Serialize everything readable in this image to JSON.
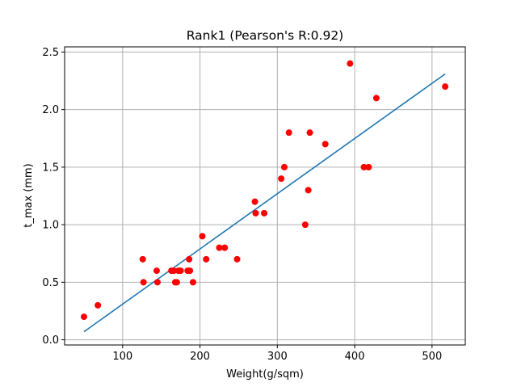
{
  "chart_data": {
    "type": "scatter",
    "title": "Rank1 (Pearson's R:0.92)",
    "xlabel": "Weight(g/sqm)",
    "ylabel": "t_max (mm)",
    "xlim": [
      25,
      543
    ],
    "ylim": [
      -0.045,
      2.545
    ],
    "xticks": [
      100,
      200,
      300,
      400,
      500
    ],
    "yticks": [
      0.0,
      0.5,
      1.0,
      1.5,
      2.0,
      2.5
    ],
    "xtick_labels": [
      "100",
      "200",
      "300",
      "400",
      "500"
    ],
    "ytick_labels": [
      "0.0",
      "0.5",
      "1.0",
      "1.5",
      "2.0",
      "2.5"
    ],
    "grid": true,
    "colors": {
      "points": "#ff0000",
      "fit_line": "#1f77b4",
      "grid": "#b0b0b0",
      "axes": "#000000"
    },
    "series": [
      {
        "kind": "scatter",
        "x": [
          50,
          68,
          126,
          127,
          144,
          145,
          163,
          166,
          168,
          170,
          172,
          175,
          184,
          186,
          187,
          191,
          203,
          208,
          225,
          232,
          248,
          271,
          272,
          283,
          305,
          309,
          315,
          336,
          340,
          342,
          362,
          394,
          412,
          418,
          428,
          517
        ],
        "y": [
          0.2,
          0.3,
          0.7,
          0.5,
          0.6,
          0.5,
          0.6,
          0.6,
          0.5,
          0.5,
          0.6,
          0.6,
          0.6,
          0.7,
          0.6,
          0.5,
          0.9,
          0.7,
          0.8,
          0.8,
          0.7,
          1.2,
          1.1,
          1.1,
          1.4,
          1.5,
          1.8,
          1.0,
          1.3,
          1.8,
          1.7,
          2.4,
          1.5,
          1.5,
          2.1,
          2.2
        ]
      },
      {
        "kind": "line",
        "x": [
          50,
          517
        ],
        "y": [
          0.07,
          2.31
        ]
      }
    ]
  }
}
